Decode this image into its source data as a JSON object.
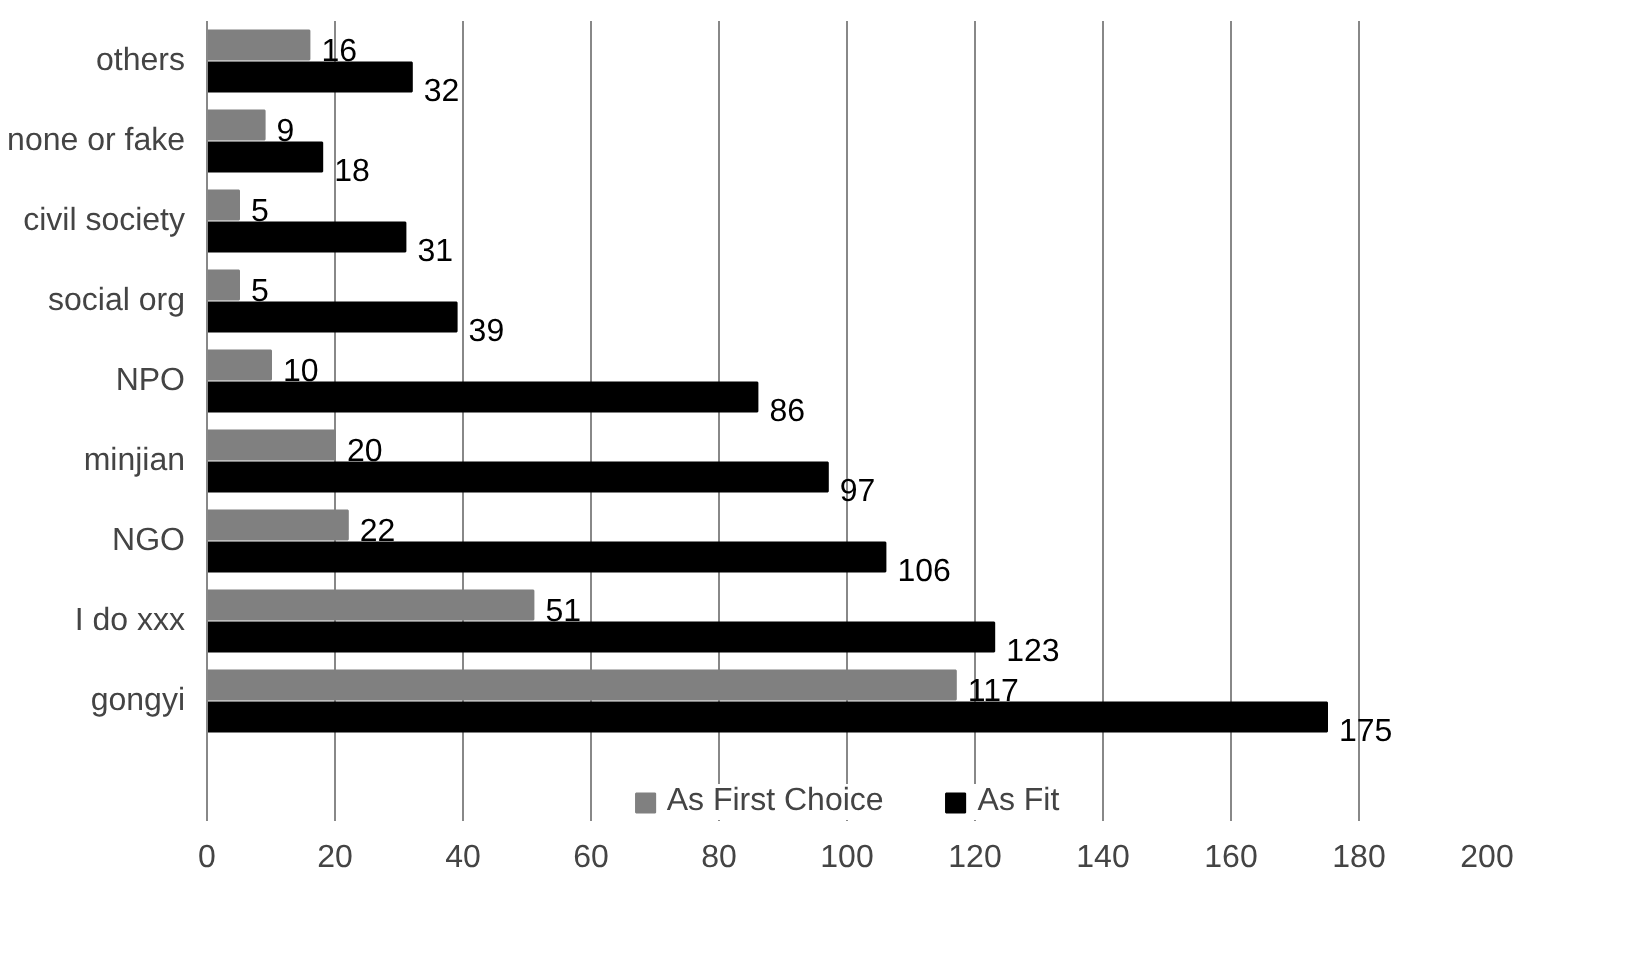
{
  "chart_data": {
    "type": "bar",
    "orientation": "horizontal",
    "categories": [
      "others",
      "none or fake",
      "civil society",
      "social org",
      "NPO",
      "minjian",
      "NGO",
      "I do xxx",
      "gongyi"
    ],
    "series": [
      {
        "name": "As First Choice",
        "color": "#808080",
        "values": [
          16,
          9,
          5,
          5,
          10,
          20,
          22,
          51,
          117
        ]
      },
      {
        "name": "As Fit",
        "color": "#000000",
        "values": [
          32,
          18,
          31,
          39,
          86,
          97,
          106,
          123,
          175
        ]
      }
    ],
    "xlim": [
      0,
      200
    ],
    "xticks": [
      0,
      20,
      40,
      60,
      80,
      100,
      120,
      140,
      160,
      180,
      200
    ],
    "grid": "x",
    "legend": "bottom",
    "data_labels": true
  }
}
